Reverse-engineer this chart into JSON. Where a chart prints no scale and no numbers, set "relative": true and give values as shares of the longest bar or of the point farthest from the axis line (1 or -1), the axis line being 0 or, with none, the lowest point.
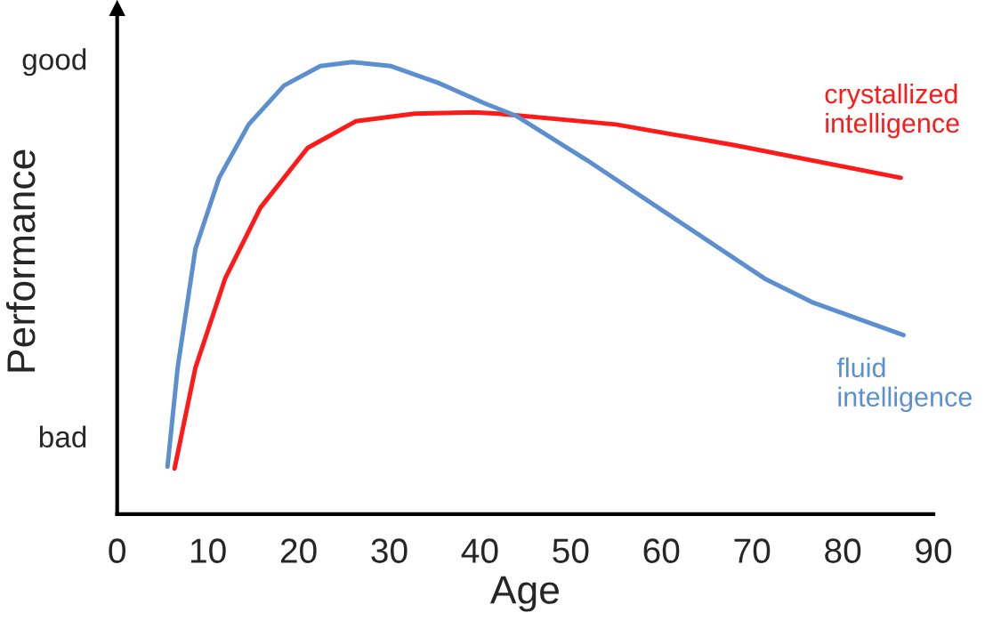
{
  "chart_data": {
    "type": "line",
    "relative": true,
    "xlabel": "Age",
    "ylabel": "Performance",
    "annotations": [
      "good",
      "bad"
    ],
    "xlim": [
      0,
      90
    ],
    "xticks": [
      0,
      10,
      20,
      30,
      40,
      50,
      60,
      70,
      80,
      90
    ],
    "series": [
      {
        "name": "crystallized intelligence",
        "color": "#ff1a1a",
        "x": [
          6.33,
          8.63,
          11.9,
          15.8,
          21.0,
          26.3,
          32.8,
          39.4,
          42.0,
          55.0,
          68.1,
          86.4
        ],
        "values": [
          0.101,
          0.324,
          0.521,
          0.678,
          0.81,
          0.869,
          0.886,
          0.889,
          0.886,
          0.862,
          0.816,
          0.744
        ]
      },
      {
        "name": "fluid intelligence",
        "color": "#5b8fd0",
        "x": [
          5.55,
          6.67,
          8.63,
          11.24,
          14.5,
          18.4,
          22.4,
          25.9,
          30.2,
          35.4,
          40.6,
          43.9,
          51.8,
          61.6,
          71.4,
          76.6,
          86.7
        ],
        "values": [
          0.105,
          0.324,
          0.587,
          0.744,
          0.862,
          0.948,
          0.991,
          1.0,
          0.991,
          0.954,
          0.908,
          0.882,
          0.783,
          0.652,
          0.521,
          0.469,
          0.396
        ]
      }
    ]
  }
}
